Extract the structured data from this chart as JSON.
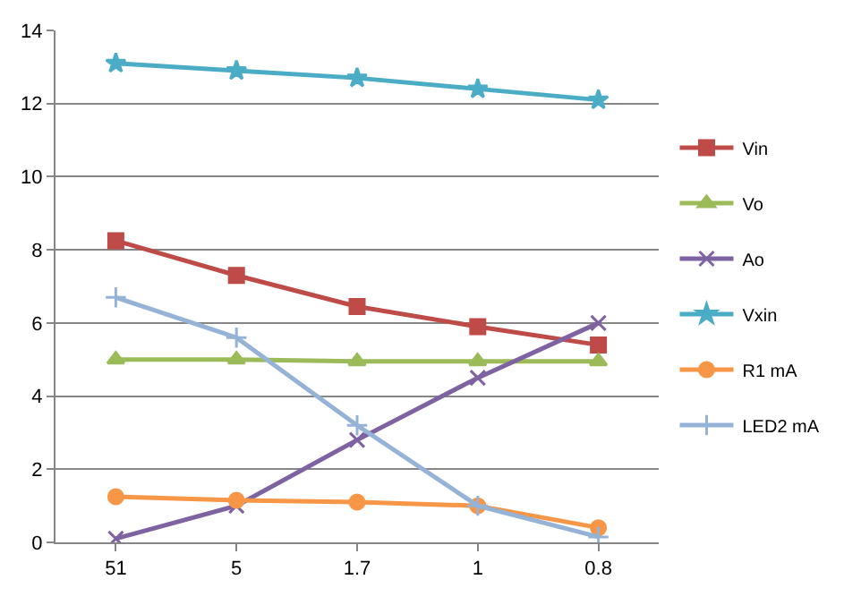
{
  "chart_data": {
    "type": "line",
    "categories": [
      "51",
      "5",
      "1.7",
      "1",
      "0.8"
    ],
    "series": [
      {
        "name": "Vin",
        "color": "#be4b48",
        "marker": "square",
        "values": [
          8.25,
          7.3,
          6.45,
          5.9,
          5.4
        ]
      },
      {
        "name": "Vo",
        "color": "#9bbb59",
        "marker": "triangle",
        "values": [
          5.0,
          5.0,
          4.95,
          4.95,
          4.95
        ]
      },
      {
        "name": "Ao",
        "color": "#7e62a1",
        "marker": "cross",
        "values": [
          0.1,
          1.0,
          2.8,
          4.5,
          6.0
        ]
      },
      {
        "name": "Vxin",
        "color": "#4bacc6",
        "marker": "star",
        "values": [
          13.1,
          12.9,
          12.7,
          12.4,
          12.1
        ]
      },
      {
        "name": "R1 mA",
        "color": "#f79646",
        "marker": "circle",
        "values": [
          1.25,
          1.15,
          1.1,
          1.0,
          0.4
        ]
      },
      {
        "name": "LED2 mA",
        "color": "#95b3d7",
        "marker": "plus",
        "values": [
          6.7,
          5.6,
          3.2,
          1.0,
          0.15
        ]
      }
    ],
    "ylim": [
      0,
      14
    ],
    "yticks": [
      0,
      2,
      4,
      6,
      8,
      10,
      12,
      14
    ],
    "grid": "y",
    "legend": "right",
    "line_style": "solid"
  }
}
